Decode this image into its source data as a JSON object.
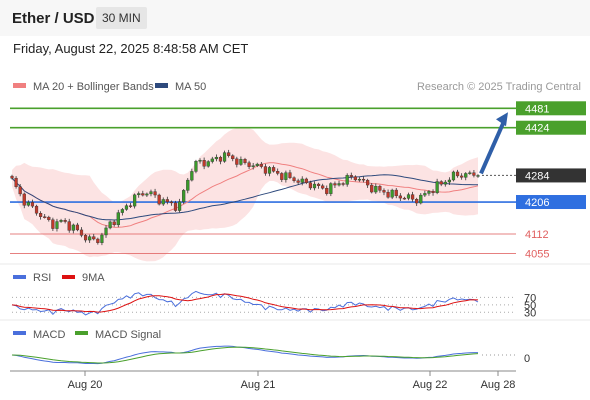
{
  "header": {
    "title": "Ether / USD",
    "timeframe": "30 MIN",
    "timestamp": "Friday, August 22, 2025 8:48:58 AM CET"
  },
  "legend": {
    "ma20": "MA 20 + Bollinger Bands",
    "ma50": "MA 50",
    "credit": "Research © 2025 Trading Central",
    "colors": {
      "ma20": "#f08080",
      "ma50": "#2e4a7d"
    }
  },
  "rsi_legend": {
    "rsi": "RSI",
    "ma9": "9MA",
    "colors": {
      "rsi": "#4a6fdc",
      "ma9": "#dd1111"
    }
  },
  "macd_legend": {
    "macd": "MACD",
    "signal": "MACD Signal",
    "colors": {
      "macd": "#4a6fdc",
      "signal": "#4aa02c"
    }
  },
  "chart_data": [
    {
      "type": "candlestick",
      "title": "Ether / USD",
      "ylim": [
        4030,
        4520
      ],
      "current_price": "4284",
      "x_ticks": [
        "Aug 20",
        "Aug 21",
        "Aug 22",
        "Aug 28"
      ],
      "levels": [
        {
          "label": "4481",
          "value": 4481,
          "kind": "resistance",
          "color": "#4aa02c"
        },
        {
          "label": "4424",
          "value": 4424,
          "kind": "resistance",
          "color": "#4aa02c"
        },
        {
          "label": "4284",
          "value": 4284,
          "kind": "last",
          "color": "#333333"
        },
        {
          "label": "4206",
          "value": 4206,
          "kind": "pivot",
          "color": "#2f6fe0"
        },
        {
          "label": "4112",
          "value": 4112,
          "kind": "support",
          "color": "#e06060"
        },
        {
          "label": "4055",
          "value": 4055,
          "kind": "support",
          "color": "#e06060"
        }
      ],
      "price_path": [
        4270,
        4232,
        4202,
        4188,
        4170,
        4150,
        4140,
        4150,
        4140,
        4128,
        4110,
        4098,
        4090,
        4110,
        4140,
        4160,
        4185,
        4205,
        4225,
        4235,
        4230,
        4215,
        4205,
        4200,
        4190,
        4260,
        4310,
        4325,
        4320,
        4330,
        4340,
        4342,
        4330,
        4320,
        4318,
        4312,
        4306,
        4300,
        4290,
        4283,
        4276,
        4270,
        4262,
        4258,
        4250,
        4242,
        4250,
        4262,
        4270,
        4283,
        4272,
        4256,
        4245,
        4238,
        4232,
        4226,
        4222,
        4218,
        4212,
        4222,
        4238,
        4252,
        4262,
        4280,
        4284,
        4288,
        4285,
        4284
      ],
      "forecast_arrow": {
        "from": 4284,
        "to": 4481
      }
    },
    {
      "type": "line",
      "title": "RSI",
      "ticks": [
        70,
        50,
        30
      ],
      "series": [
        {
          "name": "RSI"
        },
        {
          "name": "9MA"
        }
      ]
    },
    {
      "type": "line",
      "title": "MACD",
      "ticks": [
        0
      ],
      "series": [
        {
          "name": "MACD"
        },
        {
          "name": "MACD Signal"
        }
      ]
    }
  ]
}
